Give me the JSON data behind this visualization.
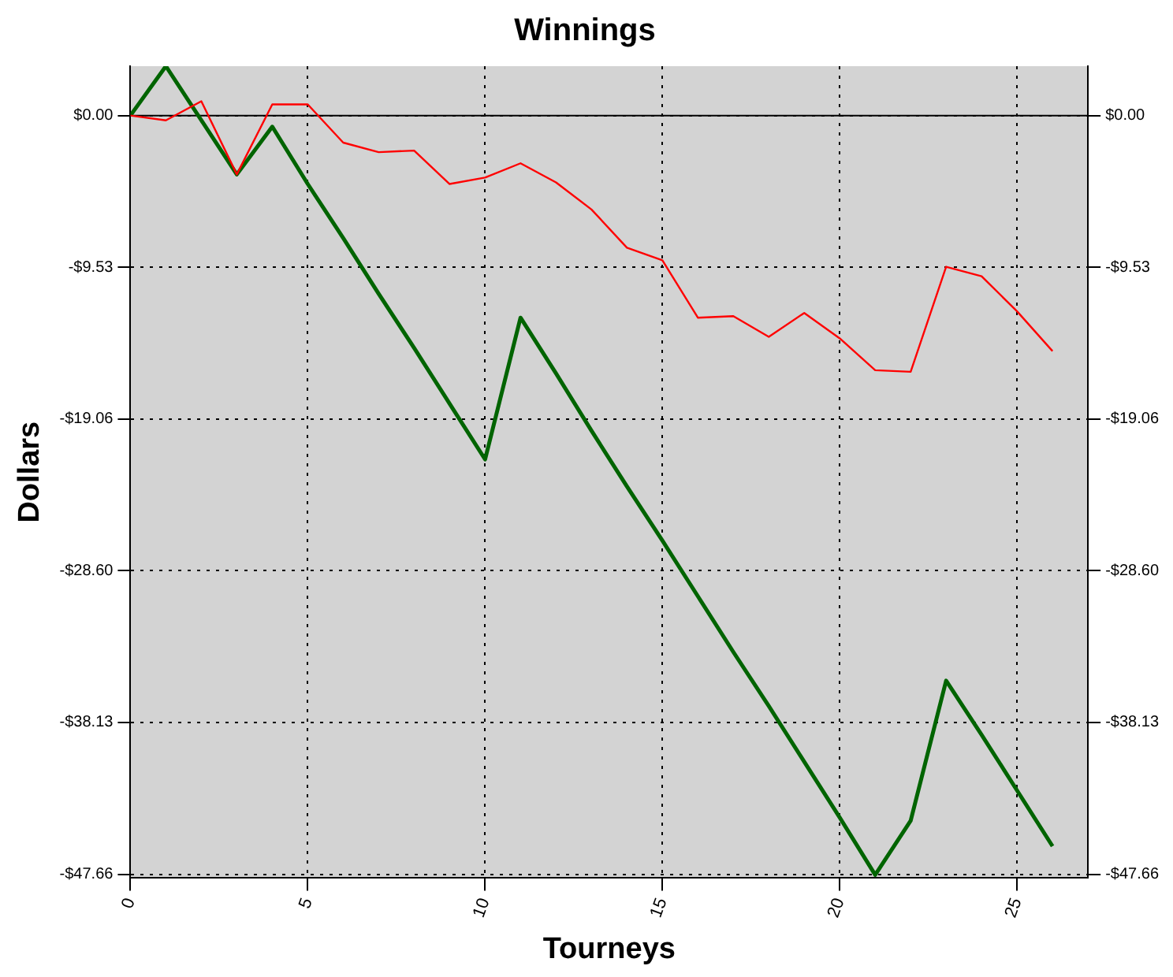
{
  "chart_data": {
    "type": "line",
    "title": "Winnings",
    "xlabel": "Tourneys",
    "ylabel": "Dollars",
    "x": [
      0,
      1,
      2,
      3,
      4,
      5,
      6,
      7,
      8,
      9,
      10,
      11,
      12,
      13,
      14,
      15,
      16,
      17,
      18,
      19,
      20,
      21,
      22,
      23,
      24,
      25,
      26
    ],
    "series": [
      {
        "color": "#ff0000",
        "values": [
          0,
          -0.3,
          0.9,
          -3.7,
          0.7,
          0.7,
          -1.7,
          -2.3,
          -2.2,
          -4.3,
          -3.9,
          -3.0,
          -4.2,
          -5.9,
          -8.3,
          -9.1,
          -12.7,
          -12.6,
          -13.9,
          -12.4,
          -14.0,
          -16.0,
          -16.1,
          -9.5,
          -10.1,
          -12.3,
          -14.8
        ]
      },
      {
        "color": "#006400",
        "values": [
          0,
          3.1,
          -0.3,
          -3.7,
          -0.7,
          -4.3,
          -7.7,
          -11.2,
          -14.6,
          -18.1,
          -21.6,
          -12.7,
          -16.2,
          -19.8,
          -23.3,
          -26.7,
          -30.2,
          -33.7,
          -37.1,
          -40.6,
          -44.1,
          -47.7,
          -44.3,
          -35.5,
          -38.9,
          -42.4,
          -45.9
        ]
      }
    ],
    "xlim": [
      0,
      27
    ],
    "xticks": [
      0,
      5,
      10,
      15,
      20,
      25
    ],
    "ylim": [
      -47.9,
      3.1
    ],
    "yticks": [
      {
        "value": 0,
        "label": "$0.00"
      },
      {
        "value": -9.53,
        "label": "-$9.53"
      },
      {
        "value": -19.06,
        "label": "-$19.06"
      },
      {
        "value": -28.6,
        "label": "-$28.60"
      },
      {
        "value": -38.13,
        "label": "-$38.13"
      },
      {
        "value": -47.66,
        "label": "-$47.66"
      }
    ],
    "y2lim": [
      -47.9,
      3.1
    ],
    "y2ticks": [
      {
        "value": 0,
        "label": "$0.00"
      },
      {
        "value": -9.53,
        "label": "-$9.53"
      },
      {
        "value": -19.06,
        "label": "-$19.06"
      },
      {
        "value": -28.6,
        "label": "-$28.60"
      },
      {
        "value": -38.13,
        "label": "-$38.13"
      },
      {
        "value": -47.66,
        "label": "-$47.66"
      }
    ],
    "ref_lines": [
      {
        "axis": "y",
        "value": 0,
        "color": "#000000",
        "line_style": "solid"
      }
    ],
    "grid": true,
    "legend": false,
    "marker": "none",
    "line_style": "solid"
  }
}
